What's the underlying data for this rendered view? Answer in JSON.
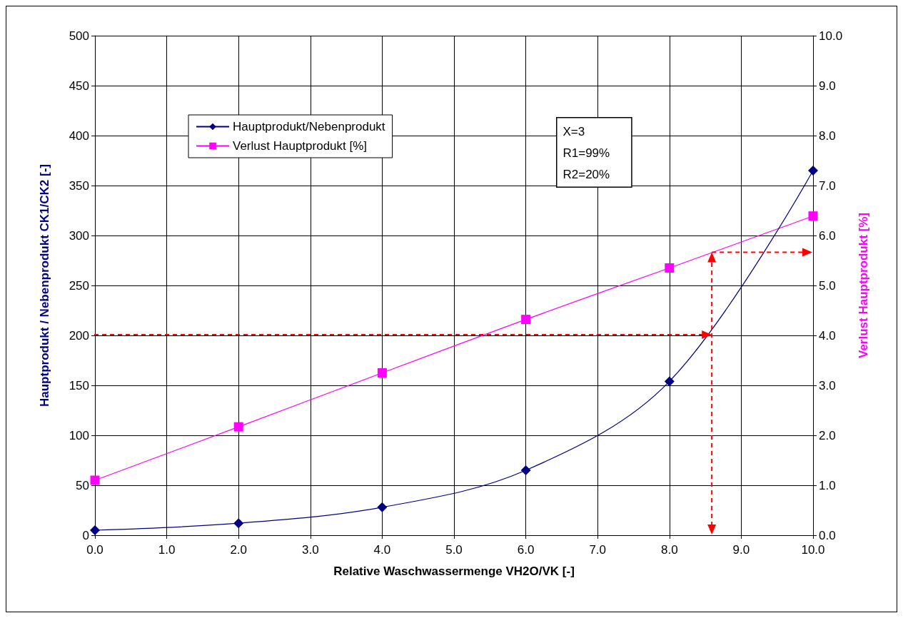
{
  "chart_data": {
    "type": "line",
    "xlabel": "Relative Waschwassermenge VH2O/VK [-]",
    "ylabel": "Hauptprodukt / Nebenprodukt CK1/CK2 [-]",
    "y2label": "Verlust Hauptprodukt [%]",
    "x": [
      0,
      2,
      4,
      6,
      8,
      10
    ],
    "series": [
      {
        "name": "Hauptprodukt/Nebenprodukt",
        "color": "#000080",
        "marker": "diamond",
        "values": [
          5,
          12,
          28,
          65,
          154,
          365
        ]
      },
      {
        "name": "Verlust Hauptprodukt [%]",
        "color": "#ff00ff",
        "marker": "square",
        "axis": "y2",
        "values": [
          1.1,
          2.17,
          3.25,
          4.32,
          5.35,
          6.39
        ]
      }
    ],
    "xlim": [
      0,
      10
    ],
    "xticks": [
      {
        "value": 0,
        "label": "0.0"
      },
      {
        "value": 1,
        "label": "1.0"
      },
      {
        "value": 2,
        "label": "2.0"
      },
      {
        "value": 3,
        "label": "3.0"
      },
      {
        "value": 4,
        "label": "4.0"
      },
      {
        "value": 5,
        "label": "5.0"
      },
      {
        "value": 6,
        "label": "6.0"
      },
      {
        "value": 7,
        "label": "7.0"
      },
      {
        "value": 8,
        "label": "8.0"
      },
      {
        "value": 9,
        "label": "9.0"
      },
      {
        "value": 10,
        "label": "10.0"
      }
    ],
    "ylim": [
      0,
      500
    ],
    "yticks": [
      0,
      50,
      100,
      150,
      200,
      250,
      300,
      350,
      400,
      450,
      500
    ],
    "y2lim": [
      0,
      10
    ],
    "y2ticks": [
      {
        "value": 0,
        "label": "0.0"
      },
      {
        "value": 1,
        "label": "1.0"
      },
      {
        "value": 2,
        "label": "2.0"
      },
      {
        "value": 3,
        "label": "3.0"
      },
      {
        "value": 4,
        "label": "4.0"
      },
      {
        "value": 5,
        "label": "5.0"
      },
      {
        "value": 6,
        "label": "6.0"
      },
      {
        "value": 7,
        "label": "7.0"
      },
      {
        "value": 8,
        "label": "8.0"
      },
      {
        "value": 9,
        "label": "9.0"
      },
      {
        "value": 10,
        "label": "10.0"
      }
    ],
    "ref_lines": [
      {
        "axis": "y",
        "value": 200,
        "color": "#ff0000",
        "line_style": "dashed"
      },
      {
        "axis": "x",
        "value": 8.6,
        "color": "#ff0000",
        "line_style": "dashed"
      },
      {
        "axis": "y2",
        "value": 5.65,
        "color": "#ff0000",
        "line_style": "dashed"
      }
    ],
    "annotations": [
      "X=3\nR1=99%\nR2=20%"
    ],
    "grid": true,
    "legend": "top left"
  }
}
